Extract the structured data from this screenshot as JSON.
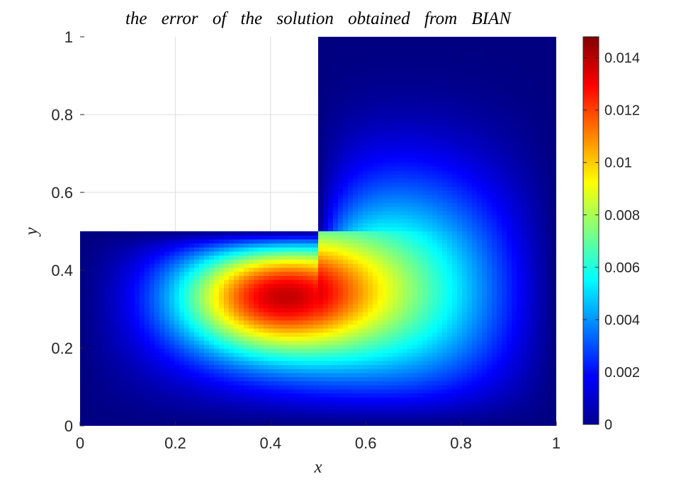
{
  "chart_data": {
    "type": "heatmap",
    "title": "the error of the solution obtained from BIAN",
    "xlabel": "x",
    "ylabel": "y",
    "xlim": [
      0,
      1
    ],
    "ylim": [
      0,
      1
    ],
    "x_ticks": [
      "0",
      "0.2",
      "0.4",
      "0.6",
      "0.8",
      "1"
    ],
    "y_ticks": [
      "0",
      "0.2",
      "0.4",
      "0.6",
      "0.8",
      "1"
    ],
    "grid": true,
    "colormap": "jet",
    "colorbar": {
      "range": [
        0,
        0.0148
      ],
      "ticks": [
        "0",
        "0.002",
        "0.004",
        "0.006",
        "0.008",
        "0.01",
        "0.012",
        "0.014"
      ],
      "placement": "right"
    },
    "domain": "L-shaped: unit square with upper-left quadrant [0,0.5]x[0.5,1] removed",
    "peak": {
      "x": 0.41,
      "y": 0.36,
      "value": 0.0147
    }
  }
}
